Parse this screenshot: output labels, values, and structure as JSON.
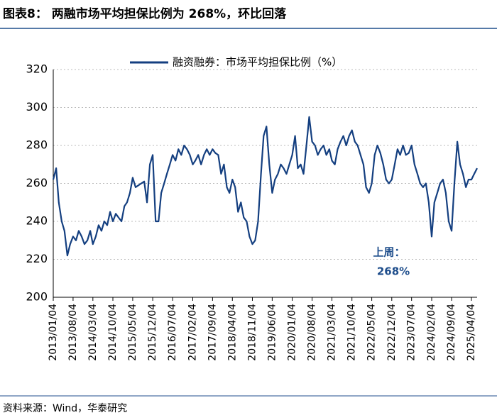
{
  "chart_data": {
    "type": "line",
    "title": "图表8：  两融市场平均担保比例为 268%，环比回落",
    "source": "资料来源：Wind，华泰研究",
    "annotations": [
      "上周：",
      "268%"
    ],
    "x": [
      "2013/01/04",
      "2013/02/04",
      "2013/03/04",
      "2013/04/04",
      "2013/05/04",
      "2013/06/04",
      "2013/07/04",
      "2013/08/04",
      "2013/09/04",
      "2013/10/04",
      "2013/11/04",
      "2013/12/04",
      "2014/01/04",
      "2014/02/04",
      "2014/03/04",
      "2014/04/04",
      "2014/05/04",
      "2014/06/04",
      "2014/07/04",
      "2014/08/04",
      "2014/09/04",
      "2014/10/04",
      "2014/11/04",
      "2014/12/04",
      "2015/01/04",
      "2015/02/04",
      "2015/03/04",
      "2015/04/04",
      "2015/05/04",
      "2015/06/04",
      "2015/07/04",
      "2015/08/04",
      "2015/09/04",
      "2015/10/04",
      "2015/11/04",
      "2015/12/04",
      "2016/01/04",
      "2016/02/04",
      "2016/03/04",
      "2016/04/04",
      "2016/05/04",
      "2016/06/04",
      "2016/07/04",
      "2016/08/04",
      "2016/09/04",
      "2016/10/04",
      "2016/11/04",
      "2016/12/04",
      "2017/01/04",
      "2017/02/04",
      "2017/03/04",
      "2017/04/04",
      "2017/05/04",
      "2017/06/04",
      "2017/07/04",
      "2017/08/04",
      "2017/09/04",
      "2017/10/04",
      "2017/11/04",
      "2017/12/04",
      "2018/01/04",
      "2018/02/04",
      "2018/03/04",
      "2018/04/04",
      "2018/05/04",
      "2018/06/04",
      "2018/07/04",
      "2018/08/04",
      "2018/09/04",
      "2018/10/04",
      "2018/11/04",
      "2018/12/04",
      "2019/01/04",
      "2019/02/04",
      "2019/03/04",
      "2019/04/04",
      "2019/05/04",
      "2019/06/04",
      "2019/07/04",
      "2019/08/04",
      "2019/09/04",
      "2019/10/04",
      "2019/11/04",
      "2019/12/04",
      "2020/01/04",
      "2020/02/04",
      "2020/03/04",
      "2020/04/04",
      "2020/05/04",
      "2020/06/04",
      "2020/07/04",
      "2020/08/04",
      "2020/09/04",
      "2020/10/04",
      "2020/11/04",
      "2020/12/04",
      "2021/01/04",
      "2021/02/04",
      "2021/03/04",
      "2021/04/04",
      "2021/05/04",
      "2021/06/04",
      "2021/07/04",
      "2021/08/04",
      "2021/09/04",
      "2021/10/04",
      "2021/11/04",
      "2021/12/04",
      "2022/01/04",
      "2022/02/04",
      "2022/03/04",
      "2022/04/04",
      "2022/05/04",
      "2022/06/04",
      "2022/07/04",
      "2022/08/04",
      "2022/09/04",
      "2022/10/04",
      "2022/11/04",
      "2022/12/04",
      "2023/01/04",
      "2023/02/04",
      "2023/03/04",
      "2023/04/04",
      "2023/05/04",
      "2023/06/04",
      "2023/07/04",
      "2023/08/04",
      "2023/09/04",
      "2023/10/04",
      "2023/11/04",
      "2023/12/04",
      "2024/01/04",
      "2024/02/04",
      "2024/03/04",
      "2024/04/04",
      "2024/05/04",
      "2024/06/04",
      "2024/07/04",
      "2024/08/04",
      "2024/09/04",
      "2024/10/04",
      "2024/11/04",
      "2024/12/04",
      "2025/01/04",
      "2025/02/04",
      "2025/03/04",
      "2025/04/04",
      "2025/05/04",
      "2025/06/04"
    ],
    "series": [
      {
        "name": "融资融券：市场平均担保比例（%）",
        "color": "#143f80",
        "values": [
          262,
          268,
          250,
          240,
          235,
          222,
          228,
          232,
          230,
          235,
          232,
          228,
          230,
          235,
          228,
          232,
          238,
          235,
          240,
          238,
          245,
          240,
          244,
          242,
          240,
          248,
          250,
          255,
          263,
          258,
          259,
          260,
          261,
          250,
          270,
          275,
          240,
          240,
          255,
          260,
          265,
          270,
          275,
          272,
          278,
          275,
          280,
          278,
          275,
          270,
          272,
          275,
          270,
          275,
          278,
          275,
          278,
          276,
          275,
          265,
          270,
          258,
          255,
          262,
          258,
          245,
          250,
          242,
          240,
          232,
          228,
          230,
          240,
          265,
          285,
          290,
          270,
          255,
          262,
          265,
          270,
          268,
          265,
          270,
          275,
          285,
          268,
          270,
          265,
          280,
          295,
          282,
          280,
          275,
          278,
          280,
          275,
          278,
          272,
          270,
          278,
          282,
          285,
          280,
          285,
          288,
          282,
          280,
          275,
          270,
          258,
          255,
          260,
          275,
          280,
          276,
          270,
          262,
          260,
          262,
          270,
          278,
          275,
          280,
          275,
          276,
          280,
          270,
          265,
          260,
          258,
          260,
          250,
          232,
          250,
          255,
          260,
          262,
          255,
          240,
          235,
          260,
          282,
          270,
          265,
          258,
          262,
          262,
          265,
          268
        ]
      }
    ],
    "xlim": [
      "2013/01/04",
      "2025/06/04"
    ],
    "xticks": [
      "2013/01/04",
      "2013/08/04",
      "2014/03/04",
      "2014/10/04",
      "2015/05/04",
      "2015/12/04",
      "2016/07/04",
      "2017/02/04",
      "2017/09/04",
      "2018/04/04",
      "2018/11/04",
      "2019/06/04",
      "2020/01/04",
      "2020/08/04",
      "2021/03/04",
      "2021/10/04",
      "2022/05/04",
      "2022/12/04",
      "2023/07/04",
      "2024/02/04",
      "2024/09/04",
      "2025/04/04"
    ],
    "ylim": [
      200,
      320
    ],
    "yticks": [
      200,
      220,
      240,
      260,
      280,
      300,
      320
    ],
    "grid": true
  }
}
